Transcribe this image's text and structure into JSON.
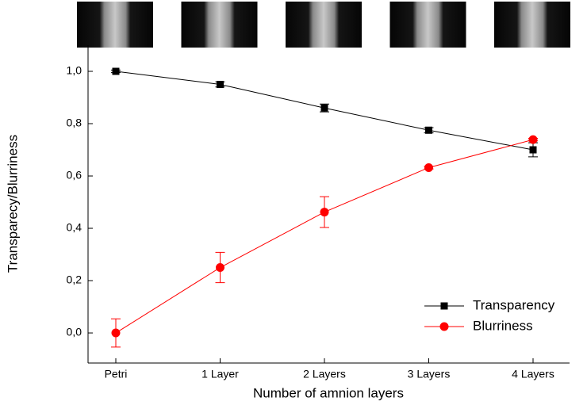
{
  "chart_data": {
    "type": "line",
    "x_label": "Number of amnion layers",
    "y_label": "Transparecy/Blurriness",
    "categories": [
      "Petri",
      "1 Layer",
      "2 Layers",
      "3 Layers",
      "4 Layers"
    ],
    "ylim": [
      -0.115,
      1.1
    ],
    "yticks": [
      {
        "value": 0,
        "label": "0,0"
      },
      {
        "value": 0.2,
        "label": "0,2"
      },
      {
        "value": 0.4,
        "label": "0,4"
      },
      {
        "value": 0.6,
        "label": "0,6"
      },
      {
        "value": 0.8,
        "label": "0,8"
      },
      {
        "value": 1,
        "label": "1,0"
      }
    ],
    "legend": "lower right",
    "series": [
      {
        "name": "Transparency",
        "color": "#000000",
        "marker": "square",
        "values": [
          1.0,
          0.95,
          0.86,
          0.775,
          0.7
        ],
        "errors": [
          0.005,
          0.01,
          0.015,
          0.01,
          0.027
        ]
      },
      {
        "name": "Blurriness",
        "color": "#ff0000",
        "marker": "circle",
        "values": [
          0.0,
          0.25,
          0.462,
          0.632,
          0.739
        ],
        "errors": [
          0.054,
          0.058,
          0.059,
          0.005,
          0.005
        ]
      }
    ]
  }
}
